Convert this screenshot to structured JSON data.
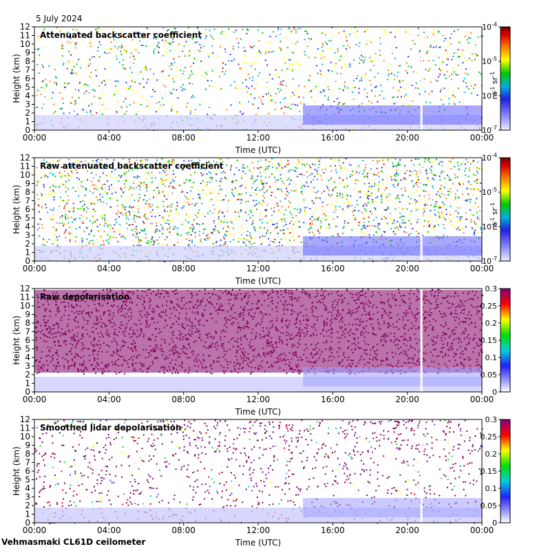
{
  "date_label": "5 July 2024",
  "footer": "Vehmasmaki CL61D ceilometer",
  "colors": {
    "spectrum": [
      "#e6e6ff",
      "#3030e8",
      "#00c8c8",
      "#00c800",
      "#ffff00",
      "#ff8000",
      "#e00000",
      "#780000"
    ],
    "depol_spectrum": [
      "#ffffff",
      "#2020ff",
      "#00e0e0",
      "#00e000",
      "#ffff00",
      "#ff0000",
      "#800080"
    ],
    "gap": "#ffffff"
  },
  "chart_data": [
    {
      "type": "heatmap",
      "title": "Attenuated backscatter coefficient",
      "xlabel": "Time (UTC)",
      "ylabel": "Height (km)",
      "x_ticks": [
        "00:00",
        "04:00",
        "08:00",
        "12:00",
        "16:00",
        "20:00",
        "00:00"
      ],
      "y_ticks": [
        "0",
        "1",
        "2",
        "3",
        "4",
        "5",
        "6",
        "7",
        "8",
        "9",
        "10",
        "11",
        "12"
      ],
      "xlim_hours": [
        0,
        24
      ],
      "ylim": [
        0,
        12
      ],
      "colorbar": {
        "scale": "log",
        "range": [
          1e-07,
          0.0001
        ],
        "ticks": [
          "10",
          "10",
          "10",
          "10"
        ],
        "tick_exponents": [
          "-7",
          "-6",
          "-5",
          "-4"
        ],
        "unit": "m",
        "unit_sup1": "-1",
        "unit_mid": " sr",
        "unit_sup2": "-1"
      }
    },
    {
      "type": "heatmap",
      "title": "Raw attenuated backscatter coefficient",
      "xlabel": "Time (UTC)",
      "ylabel": "Height (km)",
      "x_ticks": [
        "00:00",
        "04:00",
        "08:00",
        "12:00",
        "16:00",
        "20:00",
        "00:00"
      ],
      "y_ticks": [
        "0",
        "1",
        "2",
        "3",
        "4",
        "5",
        "6",
        "7",
        "8",
        "9",
        "10",
        "11",
        "12"
      ],
      "xlim_hours": [
        0,
        24
      ],
      "ylim": [
        0,
        12
      ],
      "colorbar": {
        "scale": "log",
        "range": [
          1e-07,
          0.0001
        ],
        "ticks": [
          "10",
          "10",
          "10",
          "10"
        ],
        "tick_exponents": [
          "-7",
          "-6",
          "-5",
          "-4"
        ],
        "unit": "m",
        "unit_sup1": "-1",
        "unit_mid": " sr",
        "unit_sup2": "-1"
      }
    },
    {
      "type": "heatmap",
      "title": "Raw depolarisation",
      "xlabel": "Time (UTC)",
      "ylabel": "Height (km)",
      "x_ticks": [
        "00:00",
        "04:00",
        "08:00",
        "12:00",
        "16:00",
        "20:00",
        "00:00"
      ],
      "y_ticks": [
        "0",
        "1",
        "2",
        "3",
        "4",
        "5",
        "6",
        "7",
        "8",
        "9",
        "10",
        "11",
        "12"
      ],
      "xlim_hours": [
        0,
        24
      ],
      "ylim": [
        0,
        12
      ],
      "colorbar": {
        "scale": "linear",
        "range": [
          0,
          0.3
        ],
        "ticks": [
          "0",
          "0.05",
          "0.1",
          "0.15",
          "0.2",
          "0.25",
          "0.3"
        ]
      }
    },
    {
      "type": "heatmap",
      "title": "Smoothed lidar depolarisation",
      "xlabel": "Time (UTC)",
      "ylabel": "Height (km)",
      "x_ticks": [
        "00:00",
        "04:00",
        "08:00",
        "12:00",
        "16:00",
        "20:00",
        "00:00"
      ],
      "y_ticks": [
        "0",
        "1",
        "2",
        "3",
        "4",
        "5",
        "6",
        "7",
        "8",
        "9",
        "10",
        "11",
        "12"
      ],
      "xlim_hours": [
        0,
        24
      ],
      "ylim": [
        0,
        12
      ],
      "colorbar": {
        "scale": "linear",
        "range": [
          0,
          0.3
        ],
        "ticks": [
          "0",
          "0.05",
          "0.1",
          "0.15",
          "0.2",
          "0.25",
          "0.3"
        ]
      }
    }
  ]
}
